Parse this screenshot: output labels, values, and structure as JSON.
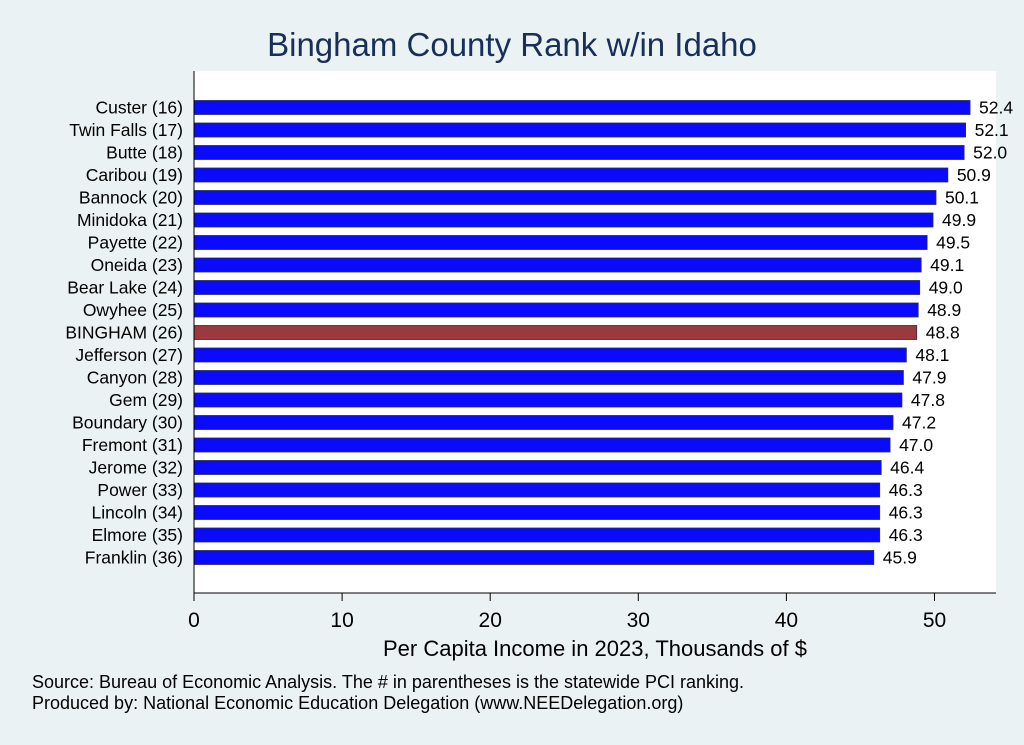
{
  "chart_data": {
    "type": "bar",
    "orientation": "horizontal",
    "title": "Bingham County Rank w/in Idaho",
    "xlabel": "Per Capita Income in 2023, Thousands of $",
    "ylabel": "",
    "xlim": [
      0,
      54
    ],
    "xticks": [
      0,
      10,
      20,
      30,
      40,
      50
    ],
    "grid": false,
    "bar_color": "#0a0aff",
    "highlight_color": "#9b3a3e",
    "highlight_category": "BINGHAM (26)",
    "categories": [
      "Custer (16)",
      "Twin Falls (17)",
      "Butte (18)",
      "Caribou (19)",
      "Bannock (20)",
      "Minidoka (21)",
      "Payette (22)",
      "Oneida (23)",
      "Bear Lake (24)",
      "Owyhee (25)",
      "BINGHAM (26)",
      "Jefferson (27)",
      "Canyon (28)",
      "Gem (29)",
      "Boundary (30)",
      "Fremont (31)",
      "Jerome (32)",
      "Power (33)",
      "Lincoln (34)",
      "Elmore (35)",
      "Franklin (36)"
    ],
    "values": [
      52.4,
      52.1,
      52.0,
      50.9,
      50.1,
      49.9,
      49.5,
      49.1,
      49.0,
      48.9,
      48.8,
      48.1,
      47.9,
      47.8,
      47.2,
      47.0,
      46.4,
      46.3,
      46.3,
      46.3,
      45.9
    ],
    "value_labels": [
      "52.4",
      "52.1",
      "52.0",
      "50.9",
      "50.1",
      "49.9",
      "49.5",
      "49.1",
      "49.0",
      "48.9",
      "48.8",
      "48.1",
      "47.9",
      "47.8",
      "47.2",
      "47.0",
      "46.4",
      "46.3",
      "46.3",
      "46.3",
      "45.9"
    ]
  },
  "notes": {
    "source": "Source: Bureau of Economic Analysis. The # in parentheses is the statewide PCI ranking.",
    "produced_by": "Produced by: National Economic Education Delegation (www.NEEDelegation.org)"
  }
}
